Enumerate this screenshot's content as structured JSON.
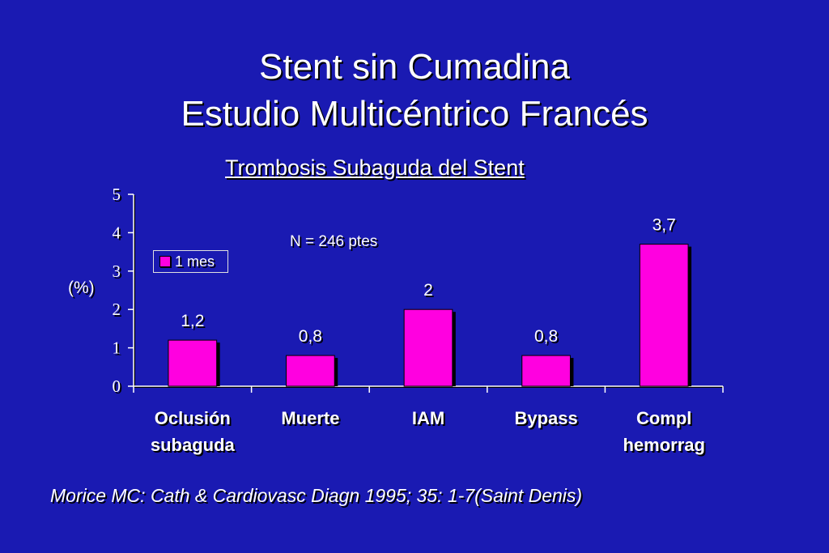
{
  "slide": {
    "title_line1": "Stent sin Cumadina",
    "title_line2": "Estudio Multicéntrico Francés",
    "citation": "Morice MC: Cath & Cardiovasc Diagn 1995; 35: 1-7(Saint Denis)"
  },
  "chart_data": {
    "type": "bar",
    "title": "Trombosis Subaguda del Stent",
    "ylabel": "(%)",
    "xlabel": "",
    "ylim": [
      0,
      5
    ],
    "yticks": [
      "0",
      "1",
      "2",
      "3",
      "4",
      "5"
    ],
    "annotation": "N = 246 ptes",
    "legend_position": "left",
    "categories": [
      [
        "Oclusión",
        "subaguda"
      ],
      [
        "Muerte"
      ],
      [
        "IAM"
      ],
      [
        "Bypass"
      ],
      [
        "Compl",
        "hemorrag"
      ]
    ],
    "series": [
      {
        "name": "1 mes",
        "color": "#ff00e0",
        "values": [
          1.2,
          0.8,
          2,
          0.8,
          3.7
        ],
        "labels": [
          "1,2",
          "0,8",
          "2",
          "0,8",
          "3,7"
        ]
      }
    ]
  }
}
